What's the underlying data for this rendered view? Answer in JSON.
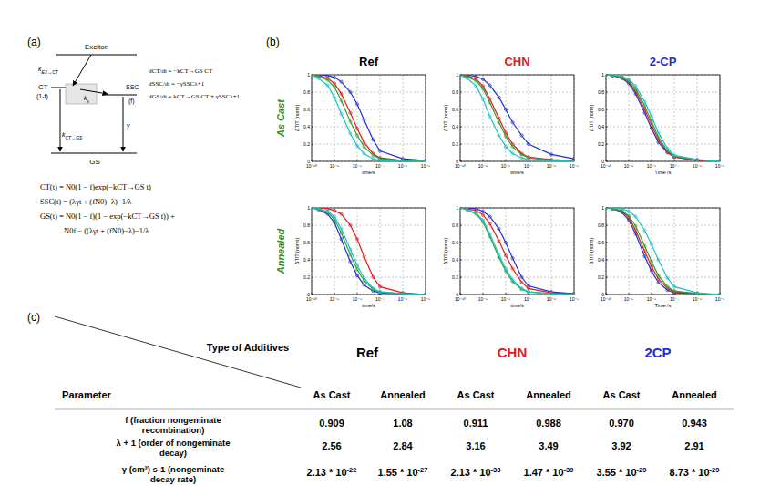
{
  "panel_a": {
    "label": "(a)",
    "levels": {
      "exciton": "Exciton",
      "ct": "CT",
      "ct_fraction": "(1-f)",
      "ssc": "SSC",
      "ssc_fraction": "(f)",
      "gs": "GS"
    },
    "rates": {
      "ex_ct": {
        "main": "k",
        "sub": "EX→CT"
      },
      "sep": {
        "main": "k",
        "sub": "s"
      },
      "gamma": {
        "main": "γ",
        "sub": ""
      },
      "ct_gs": {
        "main": "k",
        "sub": "CT→GS"
      }
    },
    "rate_equations": [
      "dCT/dt = −kCT→GS CT",
      "dSSC/dt = −γSSCλ+1",
      "dGS/dt = kCT→GS CT + γSSCλ+1"
    ],
    "solutions": [
      "CT(t) = N0(1 − f)exp(−kCT→GS t)",
      "SSC(t) = (λγt + (fN0)−λ)−1/λ",
      "GS(t) = N0(1 − f)(1 − exp(−kCT→GS t)) +",
      "N0f − ((λγt + (fN0)−λ)−1/λ"
    ]
  },
  "panel_b": {
    "label": "(b)",
    "columns": [
      {
        "text": "Ref",
        "color": "#000000"
      },
      {
        "text": "CHN",
        "color": "#e41a1c"
      },
      {
        "text": "2-CP",
        "color": "#1f2fd0"
      }
    ],
    "rows": [
      {
        "text": "As Cast",
        "color": "#2e8b2e"
      },
      {
        "text": "Annealed",
        "color": "#2e8b2e"
      }
    ]
  },
  "chart_data": [
    {
      "type": "line",
      "marker": "circle",
      "log": "x",
      "grid": true,
      "x_label": "time/s",
      "y_label": "ΔT/T (norm)",
      "x": [
        1e-10,
        2e-10,
        5e-10,
        1e-09,
        2e-09,
        5e-09,
        1e-08,
        2e-08,
        5e-08,
        1e-07,
        1e-06,
        1e-05
      ],
      "xlim": [
        1e-10,
        1e-05
      ],
      "xticks": [
        {
          "value": 1e-10,
          "label": "10⁻¹⁰"
        },
        {
          "value": 1e-09,
          "label": "10⁻⁹"
        },
        {
          "value": 1e-08,
          "label": "10⁻⁸"
        },
        {
          "value": 1e-07,
          "label": "10⁻⁷"
        },
        {
          "value": 1e-06,
          "label": "10⁻⁶"
        },
        {
          "value": 1e-05,
          "label": "10⁻⁵"
        }
      ],
      "ylim": [
        0,
        1
      ],
      "yticks": [
        0,
        0.2,
        0.4,
        0.6,
        0.8,
        1
      ],
      "series": [
        {
          "color": "#1f2fd0",
          "values": [
            1,
            1,
            0.99,
            0.97,
            0.92,
            0.8,
            0.66,
            0.48,
            0.25,
            0.12,
            0.03,
            0.01
          ]
        },
        {
          "color": "#e41a1c",
          "values": [
            1,
            0.99,
            0.96,
            0.9,
            0.78,
            0.56,
            0.38,
            0.22,
            0.09,
            0.04,
            0.01,
            0
          ]
        },
        {
          "color": "#2ca02c",
          "values": [
            1,
            0.98,
            0.94,
            0.86,
            0.7,
            0.46,
            0.3,
            0.17,
            0.07,
            0.03,
            0.01,
            0
          ]
        },
        {
          "color": "#17c3c3",
          "values": [
            0.99,
            0.96,
            0.88,
            0.74,
            0.55,
            0.32,
            0.18,
            0.09,
            0.03,
            0.01,
            0,
            0
          ]
        }
      ]
    },
    {
      "type": "line",
      "marker": "circle",
      "log": "x",
      "grid": true,
      "x_label": "time/s",
      "y_label": "ΔT/T (norm)",
      "x": [
        1e-10,
        2e-10,
        5e-10,
        1e-09,
        2e-09,
        5e-09,
        1e-08,
        2e-08,
        5e-08,
        1e-07,
        1e-06,
        1e-05
      ],
      "xlim": [
        1e-10,
        1e-05
      ],
      "xticks": [
        {
          "value": 1e-10,
          "label": "10⁻¹⁰"
        },
        {
          "value": 1e-09,
          "label": "10⁻⁹"
        },
        {
          "value": 1e-08,
          "label": "10⁻⁸"
        },
        {
          "value": 1e-07,
          "label": "10⁻⁷"
        },
        {
          "value": 1e-06,
          "label": "10⁻⁶"
        },
        {
          "value": 1e-05,
          "label": "10⁻⁵"
        }
      ],
      "ylim": [
        0,
        1
      ],
      "yticks": [
        0,
        0.2,
        0.4,
        0.6,
        0.8,
        1
      ],
      "series": [
        {
          "color": "#1f2fd0",
          "values": [
            1,
            1,
            0.98,
            0.95,
            0.88,
            0.74,
            0.6,
            0.45,
            0.3,
            0.2,
            0.08,
            0.03
          ]
        },
        {
          "color": "#e41a1c",
          "values": [
            1,
            0.99,
            0.95,
            0.87,
            0.72,
            0.5,
            0.33,
            0.2,
            0.09,
            0.05,
            0.02,
            0.01
          ]
        },
        {
          "color": "#2ca02c",
          "values": [
            1,
            0.98,
            0.93,
            0.84,
            0.68,
            0.45,
            0.29,
            0.17,
            0.08,
            0.04,
            0.01,
            0
          ]
        },
        {
          "color": "#17c3c3",
          "values": [
            0.99,
            0.96,
            0.87,
            0.72,
            0.52,
            0.3,
            0.17,
            0.09,
            0.04,
            0.02,
            0.01,
            0
          ]
        }
      ]
    },
    {
      "type": "line",
      "marker": "circle",
      "log": "x",
      "grid": true,
      "x_label": "Time /s",
      "y_label": "ΔT/T (norm)",
      "x": [
        1e-10,
        2e-10,
        5e-10,
        1e-09,
        2e-09,
        5e-09,
        1e-08,
        2e-08,
        5e-08,
        1e-07,
        1e-06,
        1e-05
      ],
      "xlim": [
        1e-10,
        1e-05
      ],
      "xticks": [
        {
          "value": 1e-10,
          "label": "10⁻¹⁰"
        },
        {
          "value": 1e-09,
          "label": "10⁻⁹"
        },
        {
          "value": 1e-08,
          "label": "10⁻⁸"
        },
        {
          "value": 1e-07,
          "label": "10⁻⁷"
        },
        {
          "value": 1e-06,
          "label": "10⁻⁶"
        },
        {
          "value": 1e-05,
          "label": "10⁻⁵"
        }
      ],
      "ylim": [
        0,
        1
      ],
      "yticks": [
        0,
        0.2,
        0.4,
        0.6,
        0.8,
        1
      ],
      "series": [
        {
          "color": "#1f2fd0",
          "values": [
            1,
            0.99,
            0.96,
            0.9,
            0.78,
            0.56,
            0.38,
            0.22,
            0.1,
            0.05,
            0.01,
            0
          ]
        },
        {
          "color": "#e41a1c",
          "values": [
            1,
            0.99,
            0.97,
            0.92,
            0.81,
            0.6,
            0.42,
            0.25,
            0.11,
            0.05,
            0.01,
            0
          ]
        },
        {
          "color": "#2ca02c",
          "values": [
            1,
            0.99,
            0.97,
            0.93,
            0.84,
            0.64,
            0.46,
            0.28,
            0.12,
            0.06,
            0.02,
            0
          ]
        },
        {
          "color": "#17c3c3",
          "values": [
            1,
            1,
            0.98,
            0.95,
            0.87,
            0.69,
            0.52,
            0.33,
            0.15,
            0.07,
            0.02,
            0
          ]
        }
      ]
    },
    {
      "type": "line",
      "marker": "circle",
      "log": "x",
      "grid": true,
      "x_label": "time/s",
      "y_label": "ΔT/T (norm)",
      "x": [
        1e-10,
        2e-10,
        5e-10,
        1e-09,
        2e-09,
        5e-09,
        1e-08,
        2e-08,
        5e-08,
        1e-07,
        1e-06,
        1e-05
      ],
      "xlim": [
        1e-10,
        1e-05
      ],
      "xticks": [
        {
          "value": 1e-10,
          "label": "10⁻¹⁰"
        },
        {
          "value": 1e-09,
          "label": "10⁻⁹"
        },
        {
          "value": 1e-08,
          "label": "10⁻⁸"
        },
        {
          "value": 1e-07,
          "label": "10⁻⁷"
        },
        {
          "value": 1e-06,
          "label": "10⁻⁶"
        },
        {
          "value": 1e-05,
          "label": "10⁻⁵"
        }
      ],
      "ylim": [
        0,
        1
      ],
      "yticks": [
        0,
        0.2,
        0.4,
        0.6,
        0.8,
        1
      ],
      "series": [
        {
          "color": "#1f2fd0",
          "values": [
            1,
            0.98,
            0.93,
            0.83,
            0.64,
            0.38,
            0.22,
            0.11,
            0.04,
            0.02,
            0.01,
            0
          ]
        },
        {
          "color": "#e41a1c",
          "values": [
            1,
            1,
            0.99,
            0.97,
            0.93,
            0.8,
            0.64,
            0.44,
            0.2,
            0.09,
            0.02,
            0
          ]
        },
        {
          "color": "#2ca02c",
          "values": [
            1,
            0.99,
            0.95,
            0.87,
            0.71,
            0.46,
            0.29,
            0.16,
            0.06,
            0.03,
            0.01,
            0
          ]
        },
        {
          "color": "#17c3c3",
          "values": [
            1,
            0.99,
            0.96,
            0.9,
            0.76,
            0.52,
            0.34,
            0.19,
            0.07,
            0.03,
            0.01,
            0
          ]
        }
      ]
    },
    {
      "type": "line",
      "marker": "circle",
      "log": "x",
      "grid": true,
      "x_label": "time/s",
      "y_label": "ΔT/T (norm)",
      "x": [
        1e-10,
        2e-10,
        5e-10,
        1e-09,
        2e-09,
        5e-09,
        1e-08,
        2e-08,
        5e-08,
        1e-07,
        1e-06,
        1e-05
      ],
      "xlim": [
        1e-10,
        1e-05
      ],
      "xticks": [
        {
          "value": 1e-10,
          "label": "10⁻¹⁰"
        },
        {
          "value": 1e-09,
          "label": "10⁻⁹"
        },
        {
          "value": 1e-08,
          "label": "10⁻⁸"
        },
        {
          "value": 1e-07,
          "label": "10⁻⁷"
        },
        {
          "value": 1e-06,
          "label": "10⁻⁶"
        },
        {
          "value": 1e-05,
          "label": "10⁻⁵"
        }
      ],
      "ylim": [
        0,
        1
      ],
      "yticks": [
        0,
        0.2,
        0.4,
        0.6,
        0.8,
        1
      ],
      "series": [
        {
          "color": "#1f2fd0",
          "values": [
            1,
            1,
            0.99,
            0.96,
            0.9,
            0.76,
            0.6,
            0.42,
            0.2,
            0.1,
            0.03,
            0.01
          ]
        },
        {
          "color": "#e41a1c",
          "values": [
            1,
            0.99,
            0.97,
            0.92,
            0.82,
            0.62,
            0.45,
            0.3,
            0.14,
            0.07,
            0.02,
            0.01
          ]
        },
        {
          "color": "#2ca02c",
          "values": [
            1,
            0.98,
            0.93,
            0.84,
            0.67,
            0.43,
            0.27,
            0.15,
            0.06,
            0.03,
            0.01,
            0
          ]
        },
        {
          "color": "#17c3c3",
          "values": [
            1,
            0.98,
            0.94,
            0.86,
            0.7,
            0.46,
            0.3,
            0.17,
            0.07,
            0.03,
            0.01,
            0
          ]
        }
      ]
    },
    {
      "type": "line",
      "marker": "circle",
      "log": "x",
      "grid": true,
      "x_label": "Time /s",
      "y_label": "ΔT/T (norm)",
      "x": [
        1e-10,
        2e-10,
        5e-10,
        1e-09,
        2e-09,
        5e-09,
        1e-08,
        2e-08,
        5e-08,
        1e-07,
        1e-06,
        1e-05
      ],
      "xlim": [
        1e-10,
        1e-05
      ],
      "xticks": [
        {
          "value": 1e-10,
          "label": "10⁻¹⁰"
        },
        {
          "value": 1e-09,
          "label": "10⁻⁹"
        },
        {
          "value": 1e-08,
          "label": "10⁻⁸"
        },
        {
          "value": 1e-07,
          "label": "10⁻⁷"
        },
        {
          "value": 1e-06,
          "label": "10⁻⁶"
        },
        {
          "value": 1e-05,
          "label": "10⁻⁵"
        }
      ],
      "ylim": [
        0,
        1
      ],
      "yticks": [
        0,
        0.2,
        0.4,
        0.6,
        0.8,
        1
      ],
      "series": [
        {
          "color": "#1f2fd0",
          "values": [
            1,
            0.99,
            0.95,
            0.86,
            0.7,
            0.44,
            0.27,
            0.14,
            0.05,
            0.02,
            0.01,
            0
          ]
        },
        {
          "color": "#e41a1c",
          "values": [
            1,
            0.99,
            0.96,
            0.89,
            0.74,
            0.5,
            0.32,
            0.18,
            0.07,
            0.03,
            0.01,
            0
          ]
        },
        {
          "color": "#2ca02c",
          "values": [
            1,
            0.99,
            0.97,
            0.91,
            0.79,
            0.56,
            0.38,
            0.22,
            0.09,
            0.04,
            0.01,
            0
          ]
        },
        {
          "color": "#17c3c3",
          "values": [
            1,
            1,
            0.99,
            0.96,
            0.9,
            0.74,
            0.58,
            0.4,
            0.19,
            0.09,
            0.02,
            0
          ]
        }
      ]
    }
  ],
  "table": {
    "label": "(c)",
    "corner_top": "Type of Additives",
    "corner_left": "Parameter",
    "groups": [
      {
        "text": "Ref",
        "color": "#000000"
      },
      {
        "text": "CHN",
        "color": "#e41a1c"
      },
      {
        "text": "2CP",
        "color": "#1f2fd0"
      }
    ],
    "columns": [
      "As Cast",
      "Annealed",
      "As Cast",
      "Annealed",
      "As Cast",
      "Annealed"
    ],
    "rows": [
      {
        "label": [
          "f (fraction nongeminate",
          "recombination)"
        ],
        "cells": [
          {
            "base": "0.909",
            "sup": ""
          },
          {
            "base": "1.08",
            "sup": ""
          },
          {
            "base": "0.911",
            "sup": ""
          },
          {
            "base": "0.988",
            "sup": ""
          },
          {
            "base": "0.970",
            "sup": ""
          },
          {
            "base": "0.943",
            "sup": ""
          }
        ]
      },
      {
        "label": [
          "λ + 1 (order of nongeminate",
          "decay)"
        ],
        "cells": [
          {
            "base": "2.56",
            "sup": ""
          },
          {
            "base": "2.84",
            "sup": ""
          },
          {
            "base": "3.16",
            "sup": ""
          },
          {
            "base": "3.49",
            "sup": ""
          },
          {
            "base": "3.92",
            "sup": ""
          },
          {
            "base": "2.91",
            "sup": ""
          }
        ]
      },
      {
        "label": [
          "γ (cm³) s-1 (nongeminate",
          "decay rate)"
        ],
        "cells": [
          {
            "base": "2.13 * 10",
            "sup": "-22"
          },
          {
            "base": "1.55 * 10",
            "sup": "-27"
          },
          {
            "base": "2.13 * 10",
            "sup": "-33"
          },
          {
            "base": "1.47 * 10",
            "sup": "-39"
          },
          {
            "base": "3.55 * 10",
            "sup": "-29"
          },
          {
            "base": "8.73 * 10",
            "sup": "-29"
          }
        ]
      }
    ]
  }
}
